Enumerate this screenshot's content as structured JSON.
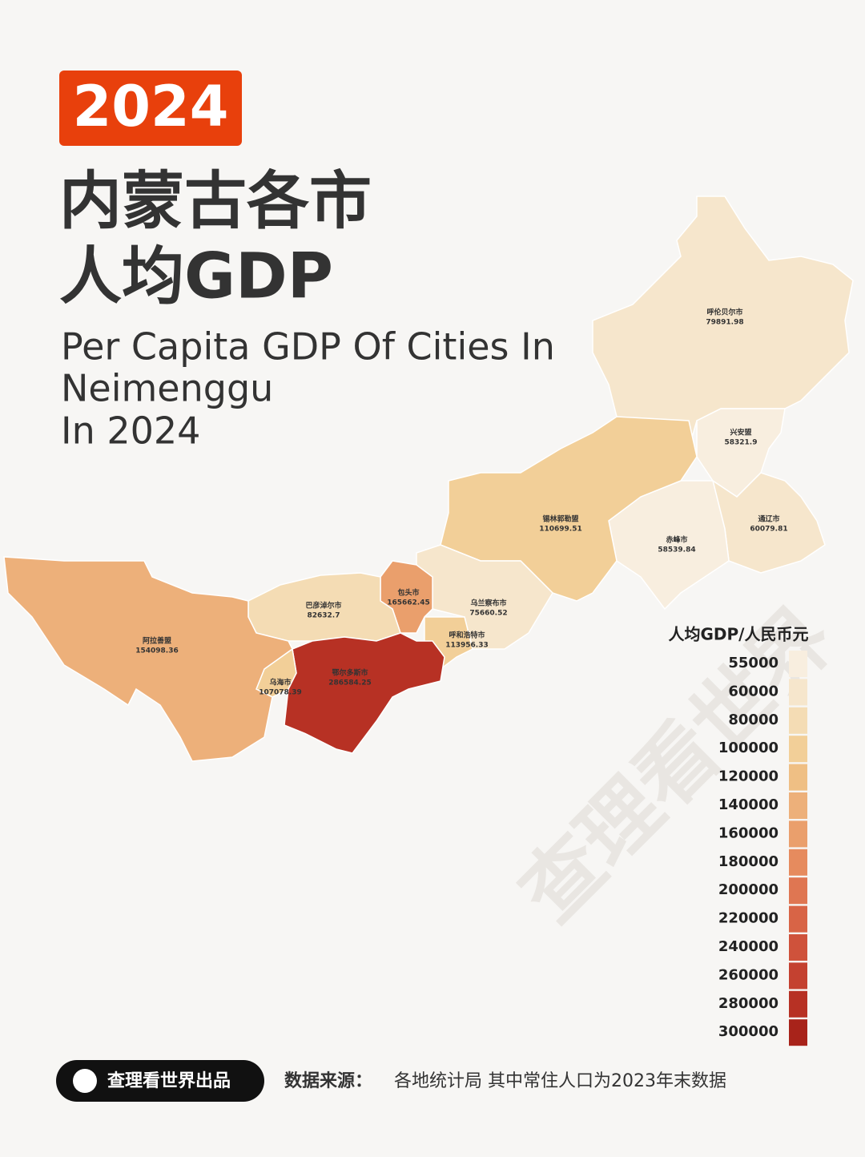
{
  "chart_data": {
    "type": "map",
    "badge": "2024",
    "title_lines": [
      "内蒙古各市",
      "人均GDP"
    ],
    "subtitle_lines": [
      "Per Capita GDP Of Cities In",
      "Neimenggu",
      "In 2024"
    ],
    "categories": [
      "呼伦贝尔市",
      "兴安盟",
      "通辽市",
      "赤峰市",
      "锡林郭勒盟",
      "乌兰察布市",
      "呼和浩特市",
      "包头市",
      "巴彦淖尔市",
      "鄂尔多斯市",
      "乌海市",
      "阿拉善盟"
    ],
    "values": [
      79891.98,
      58321.9,
      60079.81,
      58539.84,
      110699.51,
      75660.52,
      113956.33,
      165662.45,
      82632.7,
      286584.25,
      107078.39,
      154098.36
    ],
    "legend_title": "人均GDP/人民币元",
    "legend_ticks": [
      55000,
      60000,
      80000,
      100000,
      120000,
      140000,
      160000,
      180000,
      200000,
      220000,
      240000,
      260000,
      280000,
      300000
    ],
    "legend_colors": [
      "#f8eedf",
      "#f6e6cc",
      "#f4dcb4",
      "#f2cf98",
      "#efbf84",
      "#edb07a",
      "#ea9f6c",
      "#e68b5e",
      "#df7652",
      "#d86446",
      "#cf523b",
      "#c44130",
      "#b73124",
      "#a8231a"
    ],
    "watermark": "查理看世界",
    "footer": {
      "brand": "查理看世界出品",
      "source_label": "数据来源：",
      "source_text": "各地统计局  其中常住人口为2023年末数据"
    }
  }
}
